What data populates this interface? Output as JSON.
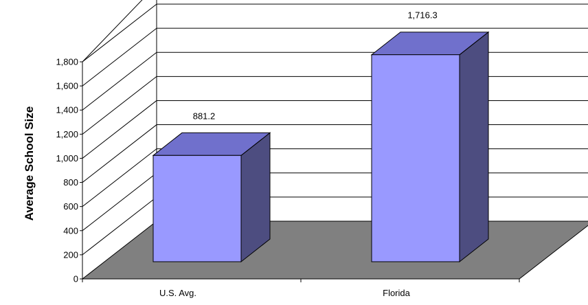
{
  "chart_data": {
    "type": "bar",
    "title": "",
    "xlabel": "",
    "ylabel": "Average School Size",
    "categories": [
      "U.S. Avg.",
      "Florida"
    ],
    "values": [
      881.2,
      1716.3
    ],
    "data_labels": [
      "881.2",
      "1,716.3"
    ],
    "ylim": [
      0,
      1800
    ],
    "yticks": [
      0,
      200,
      400,
      600,
      800,
      1000,
      1200,
      1400,
      1600,
      1800
    ],
    "ytick_labels": [
      "0",
      "200",
      "400",
      "600",
      "800",
      "1,000",
      "1,200",
      "1,400",
      "1,600",
      "1,800"
    ],
    "grid": true,
    "legend": "none",
    "style": "3d",
    "colors": {
      "bar_front": "#9999ff",
      "bar_top": "#7070cc",
      "bar_side": "#4d4d80",
      "floor": "#808080",
      "grid": "#000000"
    }
  }
}
